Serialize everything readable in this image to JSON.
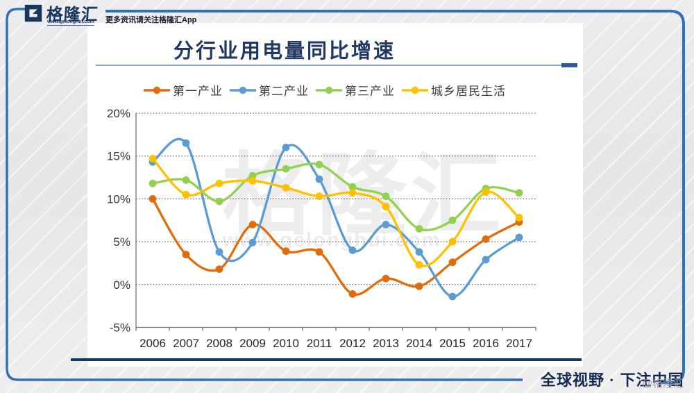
{
  "header": {
    "logo_letter": "G",
    "logo_text": "格隆汇",
    "logo_url": "www.gelonghui.com",
    "tagline": "更多资讯请关注格隆汇App"
  },
  "chart_data": {
    "type": "line",
    "title": "分行业用电量同比增速",
    "categories": [
      "2006",
      "2007",
      "2008",
      "2009",
      "2010",
      "2011",
      "2012",
      "2013",
      "2014",
      "2015",
      "2016",
      "2017"
    ],
    "series": [
      {
        "name": "第一产业",
        "color": "#E36C0A",
        "values": [
          10.0,
          3.5,
          1.8,
          7.0,
          3.9,
          3.8,
          -1.1,
          0.7,
          -0.2,
          2.6,
          5.3,
          7.3
        ]
      },
      {
        "name": "第二产业",
        "color": "#5B9BD5",
        "values": [
          14.3,
          16.5,
          3.8,
          4.9,
          16.0,
          12.3,
          4.0,
          7.0,
          3.8,
          -1.4,
          2.9,
          5.5
        ]
      },
      {
        "name": "第三产业",
        "color": "#92D050",
        "values": [
          11.8,
          12.2,
          9.7,
          12.7,
          13.5,
          14.0,
          11.4,
          10.3,
          6.5,
          7.5,
          11.2,
          10.7
        ]
      },
      {
        "name": "城乡居民生活",
        "color": "#FFC000",
        "values": [
          14.7,
          10.5,
          11.8,
          12.1,
          11.3,
          10.3,
          10.7,
          9.1,
          2.3,
          5.0,
          10.8,
          7.8
        ]
      }
    ],
    "ylim": [
      -5,
      20
    ],
    "y_tick_labels": [
      "20%",
      "15%",
      "10%",
      "5%",
      "0%",
      "-5%"
    ],
    "grid": "horizontal-dotted",
    "legend_position": "top",
    "marker": "circle",
    "smooth": true
  },
  "watermark": {
    "brand": "格隆汇",
    "url": "www.gelonghui.com"
  },
  "footer": {
    "slogan": "全球视野 · 下注中国",
    "watermark": "@格隆汇"
  },
  "colors": {
    "accent_frame": "#2F70B7",
    "logo_navy": "#17375E",
    "title": "#1F3864",
    "title_underline": "#8BA7CC",
    "title_underline_dash": "#2E5B9F",
    "card_bottom_line": "#17375E",
    "footer_slogan": "#16294E"
  }
}
